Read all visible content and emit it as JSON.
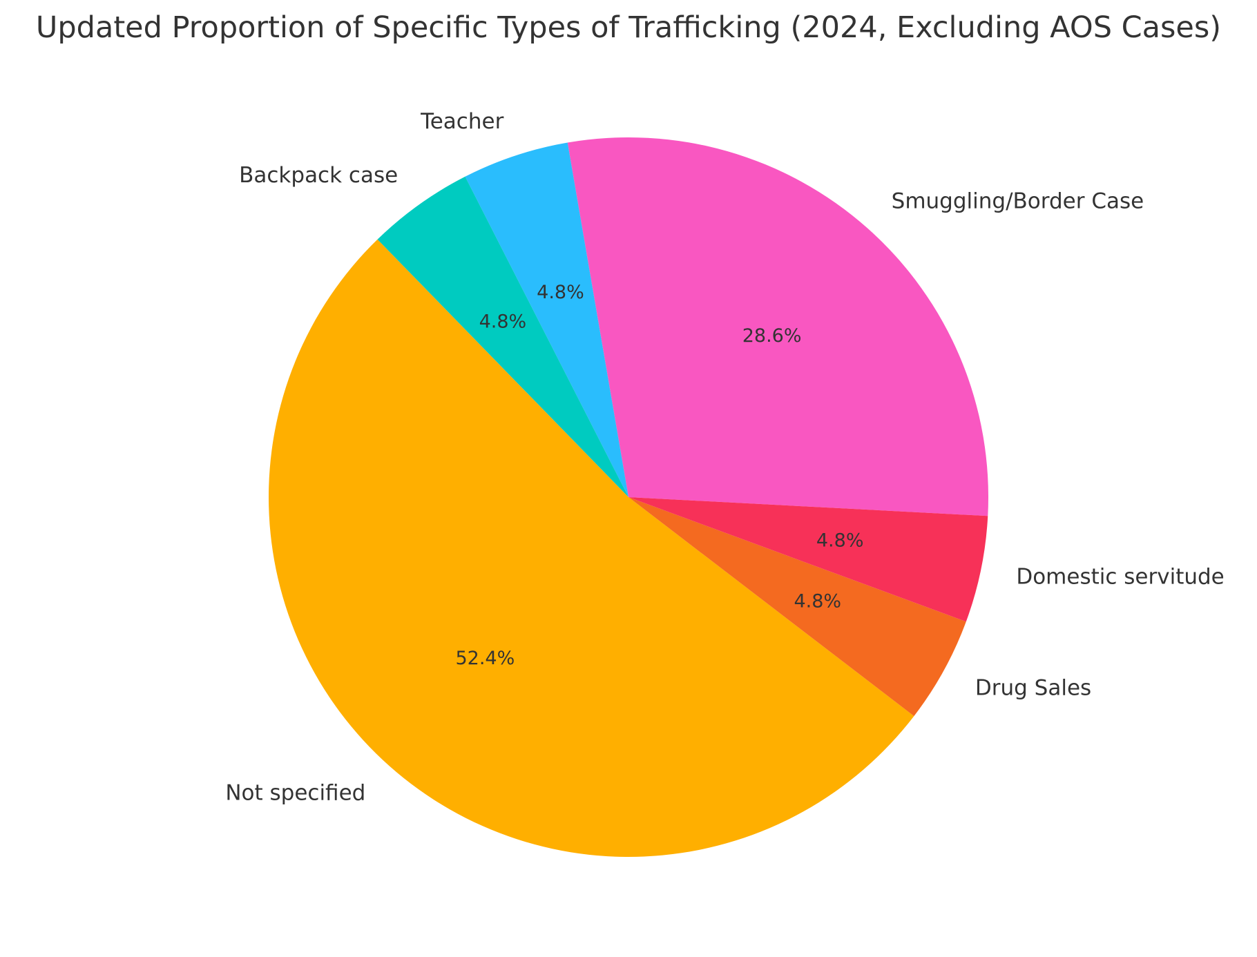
{
  "chart_data": {
    "type": "pie",
    "title": "Updated Proportion of Specific Types of Trafficking (2024, Excluding AOS Cases)",
    "slices": [
      {
        "label": "Smuggling/Border Case",
        "value": 28.6,
        "pct_label": "28.6%",
        "color": "#F957C1"
      },
      {
        "label": "Teacher",
        "value": 4.8,
        "pct_label": "4.8%",
        "color": "#2ABDFD"
      },
      {
        "label": "Backpack case",
        "value": 4.8,
        "pct_label": "4.8%",
        "color": "#00CBC0"
      },
      {
        "label": "Not specified",
        "value": 52.4,
        "pct_label": "52.4%",
        "color": "#FFAF00"
      },
      {
        "label": "Drug Sales",
        "value": 4.8,
        "pct_label": "4.8%",
        "color": "#F46A20"
      },
      {
        "label": "Domestic servitude",
        "value": 4.8,
        "pct_label": "4.8%",
        "color": "#F73158"
      }
    ],
    "start_angle_deg": -3,
    "direction": "counterclockwise",
    "legend": "none"
  }
}
